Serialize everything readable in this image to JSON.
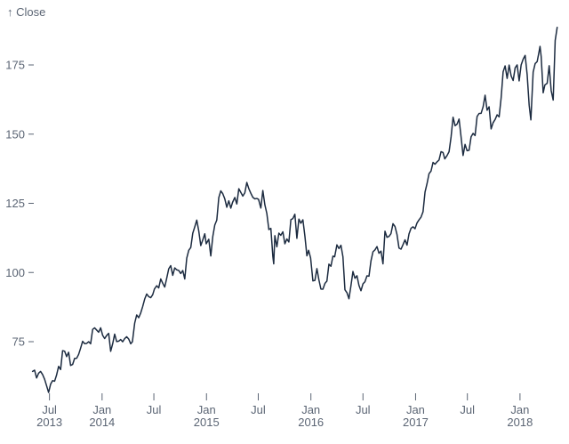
{
  "chart_data": {
    "type": "line",
    "title": "",
    "ylabel": "↑ Close",
    "xlabel": "",
    "grid": false,
    "legend": "none",
    "x_domain": [
      "2013-05-01",
      "2018-05-15"
    ],
    "y_axis_range": [
      55,
      190
    ],
    "y_ticks": [
      75,
      100,
      125,
      150,
      175
    ],
    "x_ticks": [
      {
        "date": "2013-07-01",
        "month": "Jul",
        "year": "2013"
      },
      {
        "date": "2014-01-01",
        "month": "Jan",
        "year": "2014"
      },
      {
        "date": "2014-07-01",
        "month": "Jul",
        "year": ""
      },
      {
        "date": "2015-01-01",
        "month": "Jan",
        "year": "2015"
      },
      {
        "date": "2015-07-01",
        "month": "Jul",
        "year": ""
      },
      {
        "date": "2016-01-01",
        "month": "Jan",
        "year": "2016"
      },
      {
        "date": "2016-07-01",
        "month": "Jul",
        "year": ""
      },
      {
        "date": "2017-01-01",
        "month": "Jan",
        "year": "2017"
      },
      {
        "date": "2017-07-01",
        "month": "Jul",
        "year": ""
      },
      {
        "date": "2018-01-01",
        "month": "Jan",
        "year": "2018"
      }
    ],
    "colors": {
      "line": "#1c2b40",
      "axis_text": "#5b6574",
      "background": "#ffffff"
    },
    "series": [
      {
        "name": "Close",
        "points": [
          [
            "2013-05-03",
            64.26
          ],
          [
            "2013-05-10",
            64.71
          ],
          [
            "2013-05-17",
            61.89
          ],
          [
            "2013-05-24",
            63.59
          ],
          [
            "2013-05-31",
            64.25
          ],
          [
            "2013-06-07",
            63.12
          ],
          [
            "2013-06-14",
            61.44
          ],
          [
            "2013-06-21",
            59.07
          ],
          [
            "2013-06-28",
            56.65
          ],
          [
            "2013-07-05",
            59.63
          ],
          [
            "2013-07-12",
            60.93
          ],
          [
            "2013-07-19",
            60.71
          ],
          [
            "2013-07-26",
            62.99
          ],
          [
            "2013-08-02",
            66.08
          ],
          [
            "2013-08-09",
            64.92
          ],
          [
            "2013-08-16",
            71.76
          ],
          [
            "2013-08-23",
            71.57
          ],
          [
            "2013-08-30",
            69.6
          ],
          [
            "2013-09-06",
            71.17
          ],
          [
            "2013-09-13",
            66.41
          ],
          [
            "2013-09-20",
            66.77
          ],
          [
            "2013-09-27",
            68.96
          ],
          [
            "2013-10-04",
            69.0
          ],
          [
            "2013-10-11",
            70.4
          ],
          [
            "2013-10-18",
            72.69
          ],
          [
            "2013-10-25",
            75.14
          ],
          [
            "2013-11-01",
            74.29
          ],
          [
            "2013-11-08",
            74.37
          ],
          [
            "2013-11-15",
            74.99
          ],
          [
            "2013-11-22",
            74.26
          ],
          [
            "2013-11-29",
            79.44
          ],
          [
            "2013-12-06",
            80.0
          ],
          [
            "2013-12-13",
            79.2
          ],
          [
            "2013-12-20",
            78.43
          ],
          [
            "2013-12-27",
            80.01
          ],
          [
            "2014-01-03",
            77.28
          ],
          [
            "2014-01-10",
            76.13
          ],
          [
            "2014-01-17",
            77.24
          ],
          [
            "2014-01-24",
            78.01
          ],
          [
            "2014-01-31",
            71.51
          ],
          [
            "2014-02-07",
            74.24
          ],
          [
            "2014-02-14",
            77.71
          ],
          [
            "2014-02-21",
            75.04
          ],
          [
            "2014-02-28",
            75.18
          ],
          [
            "2014-03-07",
            75.78
          ],
          [
            "2014-03-14",
            74.96
          ],
          [
            "2014-03-21",
            76.12
          ],
          [
            "2014-03-28",
            76.78
          ],
          [
            "2014-04-04",
            75.97
          ],
          [
            "2014-04-11",
            74.23
          ],
          [
            "2014-04-17",
            74.99
          ],
          [
            "2014-04-25",
            81.71
          ],
          [
            "2014-05-02",
            84.65
          ],
          [
            "2014-05-09",
            83.65
          ],
          [
            "2014-05-16",
            85.36
          ],
          [
            "2014-05-23",
            87.73
          ],
          [
            "2014-05-30",
            90.43
          ],
          [
            "2014-06-06",
            92.22
          ],
          [
            "2014-06-13",
            91.28
          ],
          [
            "2014-06-20",
            90.91
          ],
          [
            "2014-06-27",
            91.98
          ],
          [
            "2014-07-03",
            94.03
          ],
          [
            "2014-07-11",
            95.22
          ],
          [
            "2014-07-18",
            94.43
          ],
          [
            "2014-07-25",
            97.67
          ],
          [
            "2014-08-01",
            96.13
          ],
          [
            "2014-08-08",
            94.74
          ],
          [
            "2014-08-15",
            97.98
          ],
          [
            "2014-08-22",
            101.32
          ],
          [
            "2014-08-29",
            102.5
          ],
          [
            "2014-09-05",
            98.97
          ],
          [
            "2014-09-12",
            101.66
          ],
          [
            "2014-09-19",
            100.96
          ],
          [
            "2014-09-26",
            100.75
          ],
          [
            "2014-10-03",
            99.62
          ],
          [
            "2014-10-10",
            100.73
          ],
          [
            "2014-10-17",
            97.67
          ],
          [
            "2014-10-24",
            105.22
          ],
          [
            "2014-10-31",
            108.0
          ],
          [
            "2014-11-07",
            109.01
          ],
          [
            "2014-11-14",
            114.18
          ],
          [
            "2014-11-21",
            116.47
          ],
          [
            "2014-11-28",
            118.93
          ],
          [
            "2014-12-05",
            115.0
          ],
          [
            "2014-12-12",
            109.73
          ],
          [
            "2014-12-19",
            111.78
          ],
          [
            "2014-12-26",
            113.99
          ],
          [
            "2014-12-31",
            110.38
          ],
          [
            "2015-01-09",
            112.01
          ],
          [
            "2015-01-16",
            105.99
          ],
          [
            "2015-01-23",
            112.98
          ],
          [
            "2015-01-30",
            117.16
          ],
          [
            "2015-02-06",
            118.93
          ],
          [
            "2015-02-13",
            127.08
          ],
          [
            "2015-02-20",
            129.5
          ],
          [
            "2015-02-27",
            128.46
          ],
          [
            "2015-03-06",
            126.6
          ],
          [
            "2015-03-13",
            123.59
          ],
          [
            "2015-03-20",
            125.9
          ],
          [
            "2015-03-27",
            123.25
          ],
          [
            "2015-04-02",
            125.32
          ],
          [
            "2015-04-10",
            127.1
          ],
          [
            "2015-04-17",
            124.75
          ],
          [
            "2015-04-24",
            130.28
          ],
          [
            "2015-05-01",
            128.95
          ],
          [
            "2015-05-08",
            127.62
          ],
          [
            "2015-05-15",
            128.77
          ],
          [
            "2015-05-22",
            132.54
          ],
          [
            "2015-05-29",
            130.28
          ],
          [
            "2015-06-05",
            128.65
          ],
          [
            "2015-06-12",
            127.17
          ],
          [
            "2015-06-19",
            126.6
          ],
          [
            "2015-06-26",
            126.75
          ],
          [
            "2015-07-02",
            126.44
          ],
          [
            "2015-07-10",
            123.28
          ],
          [
            "2015-07-17",
            129.62
          ],
          [
            "2015-07-24",
            124.5
          ],
          [
            "2015-07-31",
            121.3
          ],
          [
            "2015-08-07",
            115.52
          ],
          [
            "2015-08-14",
            115.96
          ],
          [
            "2015-08-21",
            105.76
          ],
          [
            "2015-08-24",
            103.12
          ],
          [
            "2015-08-28",
            113.29
          ],
          [
            "2015-09-04",
            109.27
          ],
          [
            "2015-09-11",
            114.21
          ],
          [
            "2015-09-18",
            113.45
          ],
          [
            "2015-09-25",
            114.71
          ],
          [
            "2015-10-02",
            110.38
          ],
          [
            "2015-10-09",
            112.12
          ],
          [
            "2015-10-16",
            111.04
          ],
          [
            "2015-10-23",
            119.08
          ],
          [
            "2015-10-30",
            119.5
          ],
          [
            "2015-11-06",
            121.06
          ],
          [
            "2015-11-13",
            112.34
          ],
          [
            "2015-11-20",
            119.3
          ],
          [
            "2015-11-27",
            117.81
          ],
          [
            "2015-12-04",
            119.03
          ],
          [
            "2015-12-11",
            113.18
          ],
          [
            "2015-12-18",
            106.03
          ],
          [
            "2015-12-24",
            108.03
          ],
          [
            "2015-12-31",
            105.26
          ],
          [
            "2016-01-08",
            96.96
          ],
          [
            "2016-01-15",
            97.13
          ],
          [
            "2016-01-22",
            101.42
          ],
          [
            "2016-01-29",
            97.34
          ],
          [
            "2016-02-05",
            94.02
          ],
          [
            "2016-02-12",
            93.99
          ],
          [
            "2016-02-19",
            96.04
          ],
          [
            "2016-02-26",
            96.91
          ],
          [
            "2016-03-04",
            103.01
          ],
          [
            "2016-03-11",
            102.26
          ],
          [
            "2016-03-18",
            105.92
          ],
          [
            "2016-03-24",
            105.67
          ],
          [
            "2016-04-01",
            109.99
          ],
          [
            "2016-04-08",
            108.66
          ],
          [
            "2016-04-15",
            109.85
          ],
          [
            "2016-04-22",
            105.68
          ],
          [
            "2016-04-29",
            93.74
          ],
          [
            "2016-05-06",
            92.72
          ],
          [
            "2016-05-13",
            90.52
          ],
          [
            "2016-05-20",
            95.22
          ],
          [
            "2016-05-27",
            100.35
          ],
          [
            "2016-06-03",
            97.92
          ],
          [
            "2016-06-10",
            98.83
          ],
          [
            "2016-06-17",
            95.33
          ],
          [
            "2016-06-24",
            93.4
          ],
          [
            "2016-07-01",
            95.89
          ],
          [
            "2016-07-08",
            96.68
          ],
          [
            "2016-07-15",
            98.78
          ],
          [
            "2016-07-22",
            98.66
          ],
          [
            "2016-07-29",
            104.21
          ],
          [
            "2016-08-05",
            107.48
          ],
          [
            "2016-08-12",
            108.18
          ],
          [
            "2016-08-19",
            109.36
          ],
          [
            "2016-08-26",
            106.94
          ],
          [
            "2016-09-02",
            107.73
          ],
          [
            "2016-09-09",
            103.13
          ],
          [
            "2016-09-16",
            114.92
          ],
          [
            "2016-09-23",
            112.71
          ],
          [
            "2016-09-30",
            113.05
          ],
          [
            "2016-10-07",
            114.06
          ],
          [
            "2016-10-14",
            117.63
          ],
          [
            "2016-10-21",
            116.6
          ],
          [
            "2016-10-28",
            113.72
          ],
          [
            "2016-11-04",
            108.84
          ],
          [
            "2016-11-11",
            108.43
          ],
          [
            "2016-11-18",
            110.06
          ],
          [
            "2016-11-25",
            111.79
          ],
          [
            "2016-12-02",
            109.9
          ],
          [
            "2016-12-09",
            113.95
          ],
          [
            "2016-12-16",
            115.97
          ],
          [
            "2016-12-23",
            116.52
          ],
          [
            "2016-12-30",
            115.82
          ],
          [
            "2017-01-06",
            117.91
          ],
          [
            "2017-01-13",
            119.04
          ],
          [
            "2017-01-20",
            120.0
          ],
          [
            "2017-01-27",
            121.95
          ],
          [
            "2017-02-03",
            129.08
          ],
          [
            "2017-02-10",
            132.12
          ],
          [
            "2017-02-17",
            135.72
          ],
          [
            "2017-02-24",
            136.66
          ],
          [
            "2017-03-03",
            139.78
          ],
          [
            "2017-03-10",
            139.14
          ],
          [
            "2017-03-17",
            139.99
          ],
          [
            "2017-03-24",
            140.64
          ],
          [
            "2017-03-31",
            143.66
          ],
          [
            "2017-04-07",
            143.34
          ],
          [
            "2017-04-13",
            141.05
          ],
          [
            "2017-04-21",
            142.27
          ],
          [
            "2017-04-28",
            143.65
          ],
          [
            "2017-05-05",
            148.96
          ],
          [
            "2017-05-12",
            156.1
          ],
          [
            "2017-05-19",
            153.06
          ],
          [
            "2017-05-26",
            153.61
          ],
          [
            "2017-06-02",
            155.45
          ],
          [
            "2017-06-09",
            148.98
          ],
          [
            "2017-06-16",
            142.27
          ],
          [
            "2017-06-23",
            146.28
          ],
          [
            "2017-06-30",
            144.02
          ],
          [
            "2017-07-07",
            144.18
          ],
          [
            "2017-07-14",
            149.04
          ],
          [
            "2017-07-21",
            150.27
          ],
          [
            "2017-07-28",
            149.5
          ],
          [
            "2017-08-04",
            156.39
          ],
          [
            "2017-08-11",
            157.48
          ],
          [
            "2017-08-18",
            157.5
          ],
          [
            "2017-08-25",
            159.86
          ],
          [
            "2017-09-01",
            164.05
          ],
          [
            "2017-09-08",
            158.63
          ],
          [
            "2017-09-15",
            159.88
          ],
          [
            "2017-09-22",
            151.89
          ],
          [
            "2017-09-29",
            154.12
          ],
          [
            "2017-10-06",
            155.3
          ],
          [
            "2017-10-13",
            156.99
          ],
          [
            "2017-10-20",
            156.25
          ],
          [
            "2017-10-27",
            163.05
          ],
          [
            "2017-11-03",
            172.5
          ],
          [
            "2017-11-10",
            174.67
          ],
          [
            "2017-11-17",
            170.15
          ],
          [
            "2017-11-24",
            174.97
          ],
          [
            "2017-12-01",
            171.05
          ],
          [
            "2017-12-08",
            169.37
          ],
          [
            "2017-12-15",
            173.97
          ],
          [
            "2017-12-22",
            175.01
          ],
          [
            "2017-12-29",
            169.23
          ],
          [
            "2018-01-05",
            175.0
          ],
          [
            "2018-01-12",
            177.09
          ],
          [
            "2018-01-19",
            178.46
          ],
          [
            "2018-01-26",
            171.51
          ],
          [
            "2018-02-02",
            160.5
          ],
          [
            "2018-02-08",
            155.15
          ],
          [
            "2018-02-16",
            172.43
          ],
          [
            "2018-02-23",
            175.5
          ],
          [
            "2018-03-02",
            176.21
          ],
          [
            "2018-03-09",
            179.98
          ],
          [
            "2018-03-12",
            181.72
          ],
          [
            "2018-03-16",
            178.02
          ],
          [
            "2018-03-23",
            164.94
          ],
          [
            "2018-03-29",
            167.78
          ],
          [
            "2018-04-06",
            168.38
          ],
          [
            "2018-04-13",
            174.73
          ],
          [
            "2018-04-20",
            165.72
          ],
          [
            "2018-04-27",
            162.32
          ],
          [
            "2018-05-04",
            183.83
          ],
          [
            "2018-05-11",
            188.59
          ]
        ]
      }
    ]
  }
}
